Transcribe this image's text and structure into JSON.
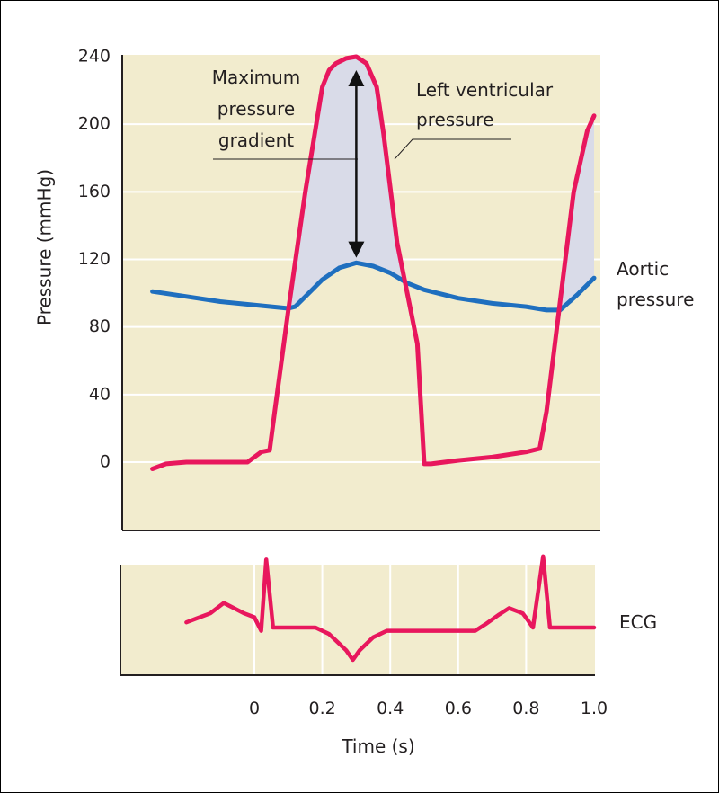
{
  "chart_data": [
    {
      "type": "line",
      "ylabel": "Pressure (mmHg)",
      "ylim": [
        -40,
        240
      ],
      "yticks": [
        "0",
        "40",
        "80",
        "120",
        "160",
        "200",
        "240"
      ],
      "xlim": [
        -0.4,
        1.0
      ],
      "grid": "horizontal",
      "series": [
        {
          "name": "Left ventricular pressure",
          "color": "#e8175d",
          "x": [
            -0.3,
            -0.26,
            -0.2,
            -0.1,
            -0.02,
            0.0,
            0.02,
            0.045,
            0.06,
            0.1,
            0.15,
            0.2,
            0.22,
            0.24,
            0.27,
            0.3,
            0.33,
            0.36,
            0.38,
            0.42,
            0.46,
            0.48,
            0.5,
            0.52,
            0.6,
            0.7,
            0.8,
            0.84,
            0.86,
            0.9,
            0.94,
            0.98,
            1.0
          ],
          "y": [
            -4,
            -1,
            0,
            0,
            0,
            3,
            6,
            7,
            30,
            90,
            160,
            222,
            232,
            236,
            239,
            240,
            236,
            222,
            195,
            130,
            90,
            70,
            -1,
            -1,
            1,
            3,
            6,
            8,
            30,
            95,
            160,
            196,
            205
          ]
        },
        {
          "name": "Aortic pressure",
          "color": "#1f6fbf",
          "x": [
            -0.3,
            -0.2,
            -0.1,
            0.0,
            0.1,
            0.12,
            0.16,
            0.2,
            0.25,
            0.3,
            0.35,
            0.4,
            0.45,
            0.5,
            0.6,
            0.7,
            0.8,
            0.86,
            0.9,
            0.95,
            1.0
          ],
          "y": [
            101,
            98,
            95,
            93,
            91,
            92,
            100,
            108,
            115,
            118,
            116,
            112,
            106,
            102,
            97,
            94,
            92,
            90,
            90,
            99,
            109
          ]
        }
      ],
      "annotations": [
        {
          "text": [
            "Maximum",
            "pressure",
            "gradient"
          ],
          "from": {
            "x": 0.3,
            "y": 232
          },
          "to": {
            "x": 0.3,
            "y": 121
          }
        },
        {
          "text": [
            "Left ventricular",
            "pressure"
          ]
        },
        {
          "text": [
            "Aortic",
            "pressure"
          ]
        }
      ]
    },
    {
      "type": "line",
      "xlabel": "Time (s)",
      "xlim": [
        -0.4,
        1.0
      ],
      "xticks": [
        "0",
        "0.2",
        "0.4",
        "0.6",
        "0.8",
        "1.0"
      ],
      "grid": "vertical",
      "series": [
        {
          "name": "ECG",
          "color": "#e8175d",
          "x": [
            -0.2,
            -0.17,
            -0.13,
            -0.09,
            -0.06,
            -0.03,
            0.0,
            0.02,
            0.035,
            0.055,
            0.1,
            0.18,
            0.22,
            0.27,
            0.29,
            0.31,
            0.35,
            0.39,
            0.45,
            0.55,
            0.65,
            0.68,
            0.72,
            0.75,
            0.79,
            0.8,
            0.82,
            0.85,
            0.87,
            0.9,
            1.0
          ],
          "y": [
            0.08,
            0.14,
            0.22,
            0.38,
            0.3,
            0.22,
            0.16,
            -0.05,
            1.05,
            0.0,
            0.0,
            0.0,
            -0.1,
            -0.35,
            -0.5,
            -0.35,
            -0.15,
            -0.05,
            -0.05,
            -0.05,
            -0.05,
            0.05,
            0.2,
            0.3,
            0.22,
            0.15,
            0.0,
            1.1,
            0.0,
            0.0,
            0.0
          ]
        }
      ]
    }
  ]
}
